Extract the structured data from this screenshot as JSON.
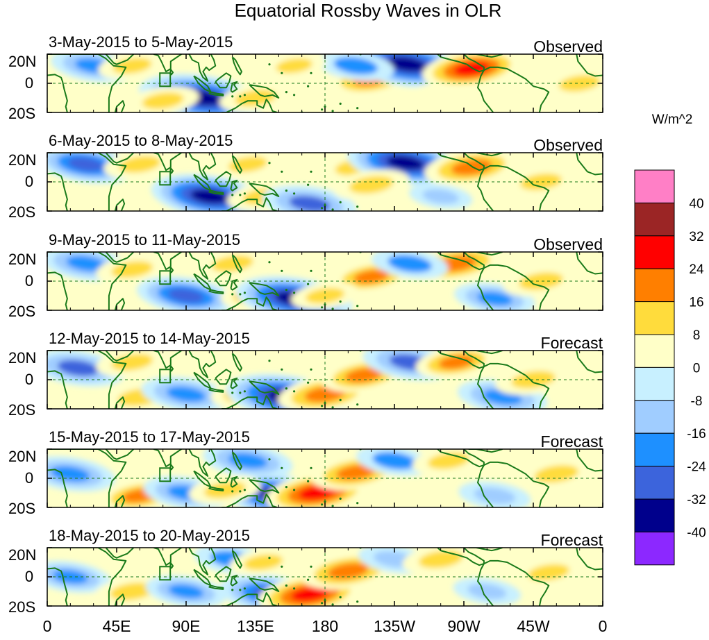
{
  "chart_data": {
    "type": "heatmap",
    "title": "Equatorial Rossby Waves in OLR",
    "units_label": "W/m^2",
    "x_ticks": [
      "0",
      "45E",
      "90E",
      "135E",
      "180",
      "135W",
      "90W",
      "45W",
      "0"
    ],
    "y_ticks": [
      "20N",
      "0",
      "20S"
    ],
    "x_range_deg_east": [
      0,
      360
    ],
    "y_range_deg": [
      -20,
      20
    ],
    "colorbar": {
      "levels": [
        "40",
        "32",
        "24",
        "16",
        "8",
        "0",
        "-8",
        "-16",
        "-24",
        "-32",
        "-40"
      ],
      "colors": [
        "#ff7fc6",
        "#9b2525",
        "#ff0000",
        "#ff7f00",
        "#ffdc3c",
        "#ffffc8",
        "#c8f0ff",
        "#a0cdff",
        "#1e90ff",
        "#3c64dc",
        "#00008c",
        "#8c28ff"
      ]
    },
    "panels": [
      {
        "date_range": "3-May-2015 to 5-May-2015",
        "status": "Observed",
        "anomalies": [
          {
            "lon": 30,
            "lat": 12,
            "value": -20
          },
          {
            "lon": 55,
            "lat": 12,
            "value": 12
          },
          {
            "lon": 100,
            "lat": -10,
            "value": -38
          },
          {
            "lon": 75,
            "lat": -12,
            "value": 14
          },
          {
            "lon": 135,
            "lat": -10,
            "value": 14
          },
          {
            "lon": 210,
            "lat": 3,
            "value": 20
          },
          {
            "lon": 233,
            "lat": 13,
            "value": -36
          },
          {
            "lon": 275,
            "lat": 10,
            "value": 26
          },
          {
            "lon": 200,
            "lat": 12,
            "value": -16
          },
          {
            "lon": 160,
            "lat": 12,
            "value": 10
          },
          {
            "lon": 250,
            "lat": -8,
            "value": 8
          },
          {
            "lon": 345,
            "lat": 0,
            "value": 14
          }
        ]
      },
      {
        "date_range": "6-May-2015 to 8-May-2015",
        "status": "Observed",
        "anomalies": [
          {
            "lon": 25,
            "lat": 12,
            "value": -26
          },
          {
            "lon": 60,
            "lat": 12,
            "value": 14
          },
          {
            "lon": 105,
            "lat": -10,
            "value": -34
          },
          {
            "lon": 130,
            "lat": 12,
            "value": 12
          },
          {
            "lon": 140,
            "lat": -10,
            "value": 14
          },
          {
            "lon": 170,
            "lat": -15,
            "value": -24
          },
          {
            "lon": 200,
            "lat": 10,
            "value": 14
          },
          {
            "lon": 232,
            "lat": 13,
            "value": -34
          },
          {
            "lon": 275,
            "lat": 10,
            "value": 24
          },
          {
            "lon": 210,
            "lat": -2,
            "value": 16
          },
          {
            "lon": 320,
            "lat": 0,
            "value": 14
          },
          {
            "lon": 255,
            "lat": -10,
            "value": -10
          }
        ]
      },
      {
        "date_range": "9-May-2015 to 11-May-2015",
        "status": "Observed",
        "anomalies": [
          {
            "lon": 25,
            "lat": 12,
            "value": -22
          },
          {
            "lon": 55,
            "lat": 8,
            "value": 14
          },
          {
            "lon": 90,
            "lat": -10,
            "value": -26
          },
          {
            "lon": 120,
            "lat": 12,
            "value": 14
          },
          {
            "lon": 140,
            "lat": -8,
            "value": 20
          },
          {
            "lon": 160,
            "lat": -12,
            "value": -34
          },
          {
            "lon": 210,
            "lat": 3,
            "value": 18
          },
          {
            "lon": 265,
            "lat": 12,
            "value": 24
          },
          {
            "lon": 235,
            "lat": 12,
            "value": -16
          },
          {
            "lon": 290,
            "lat": -12,
            "value": -18
          },
          {
            "lon": 320,
            "lat": 0,
            "value": 16
          },
          {
            "lon": 180,
            "lat": -10,
            "value": 12
          }
        ]
      },
      {
        "date_range": "12-May-2015 to 14-May-2015",
        "status": "Forecast",
        "anomalies": [
          {
            "lon": 20,
            "lat": 8,
            "value": -24
          },
          {
            "lon": 55,
            "lat": 12,
            "value": 14
          },
          {
            "lon": 60,
            "lat": -12,
            "value": 16
          },
          {
            "lon": 90,
            "lat": -10,
            "value": -22
          },
          {
            "lon": 135,
            "lat": -8,
            "value": 22
          },
          {
            "lon": 155,
            "lat": -12,
            "value": -36
          },
          {
            "lon": 180,
            "lat": -10,
            "value": 24
          },
          {
            "lon": 205,
            "lat": 3,
            "value": 20
          },
          {
            "lon": 235,
            "lat": 12,
            "value": -24
          },
          {
            "lon": 265,
            "lat": 12,
            "value": 18
          },
          {
            "lon": 295,
            "lat": -12,
            "value": -22
          },
          {
            "lon": 315,
            "lat": 0,
            "value": 16
          }
        ]
      },
      {
        "date_range": "15-May-2015 to 17-May-2015",
        "status": "Forecast",
        "anomalies": [
          {
            "lon": 15,
            "lat": 3,
            "value": -22
          },
          {
            "lon": 60,
            "lat": -12,
            "value": 18
          },
          {
            "lon": 90,
            "lat": -10,
            "value": -20
          },
          {
            "lon": 130,
            "lat": 12,
            "value": -22
          },
          {
            "lon": 150,
            "lat": -12,
            "value": -34
          },
          {
            "lon": 175,
            "lat": -10,
            "value": 28
          },
          {
            "lon": 200,
            "lat": 4,
            "value": 22
          },
          {
            "lon": 225,
            "lat": 12,
            "value": -16
          },
          {
            "lon": 260,
            "lat": 12,
            "value": 14
          },
          {
            "lon": 290,
            "lat": -12,
            "value": -14
          },
          {
            "lon": 330,
            "lat": 3,
            "value": 16
          },
          {
            "lon": 115,
            "lat": -8,
            "value": 14
          }
        ]
      },
      {
        "date_range": "18-May-2015 to 20-May-2015",
        "status": "Forecast",
        "anomalies": [
          {
            "lon": 15,
            "lat": 0,
            "value": -18
          },
          {
            "lon": 55,
            "lat": -10,
            "value": 16
          },
          {
            "lon": 90,
            "lat": -10,
            "value": -18
          },
          {
            "lon": 120,
            "lat": 12,
            "value": -16
          },
          {
            "lon": 145,
            "lat": -12,
            "value": -28
          },
          {
            "lon": 170,
            "lat": -12,
            "value": 28
          },
          {
            "lon": 195,
            "lat": 4,
            "value": 24
          },
          {
            "lon": 225,
            "lat": 12,
            "value": -14
          },
          {
            "lon": 255,
            "lat": 12,
            "value": 16
          },
          {
            "lon": 285,
            "lat": -10,
            "value": -12
          },
          {
            "lon": 325,
            "lat": 3,
            "value": 14
          },
          {
            "lon": 140,
            "lat": 10,
            "value": 12
          }
        ]
      }
    ]
  }
}
